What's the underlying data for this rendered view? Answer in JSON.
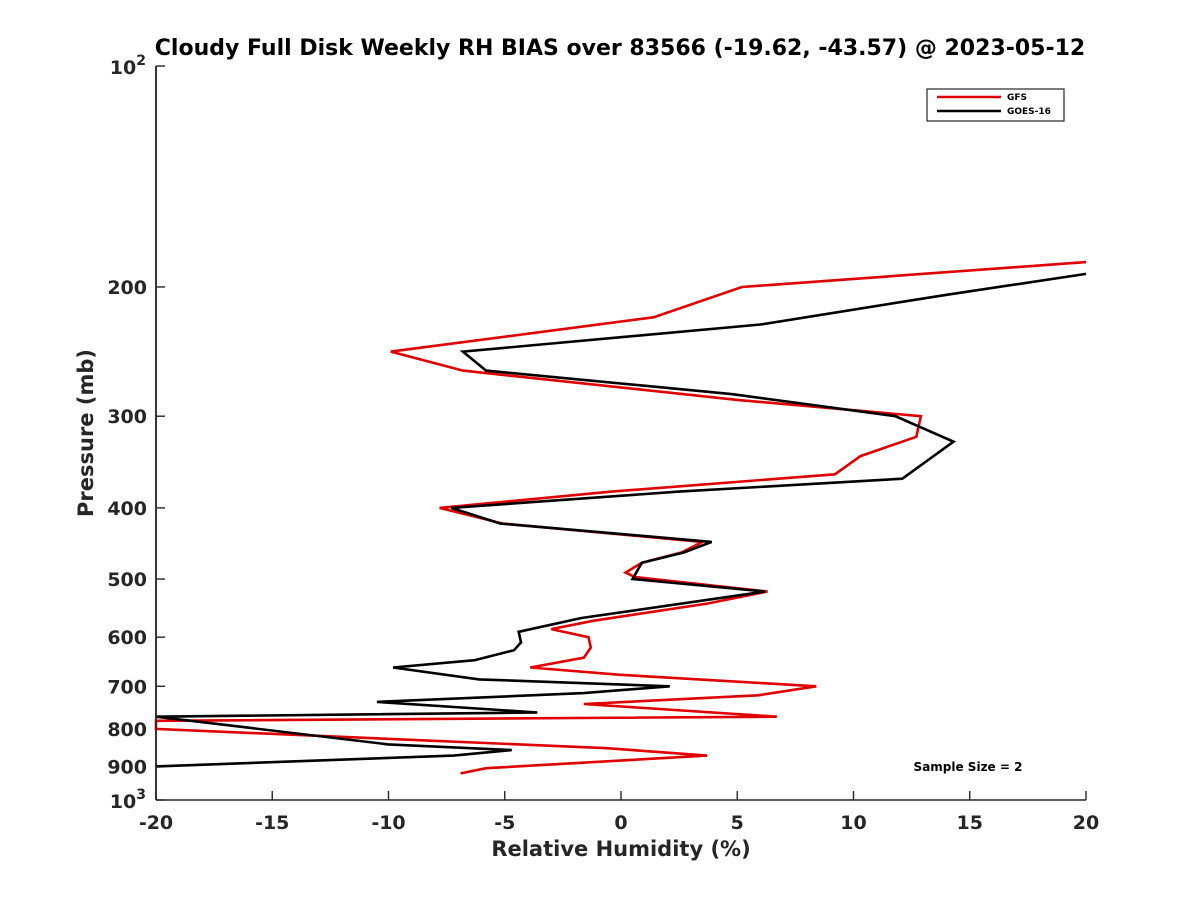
{
  "chart_data": {
    "type": "line",
    "title": "Cloudy Full Disk Weekly RH BIAS over 83566 (-19.62, -43.57) @ 2023-05-12",
    "xlabel": "Relative Humidity (%)",
    "ylabel": "Pressure (mb)",
    "xlim": [
      -20,
      20
    ],
    "ylim": [
      100,
      1000
    ],
    "y_scale": "log",
    "y_reversed": true,
    "x_ticks": [
      "-20",
      "-15",
      "-10",
      "-5",
      "0",
      "5",
      "10",
      "15",
      "20"
    ],
    "y_ticks": [
      {
        "value": 200,
        "label": "200"
      },
      {
        "value": 300,
        "label": "300"
      },
      {
        "value": 400,
        "label": "400"
      },
      {
        "value": 500,
        "label": "500"
      },
      {
        "value": 600,
        "label": "600"
      },
      {
        "value": 700,
        "label": "700"
      },
      {
        "value": 800,
        "label": "800"
      },
      {
        "value": 900,
        "label": "900"
      }
    ],
    "y_ends": {
      "top_base": "10",
      "top_exp": "2",
      "bottom_base": "10",
      "bottom_exp": "3"
    },
    "grid": false,
    "legend_position": "top-right",
    "series": [
      {
        "name": "GFS",
        "color": "#e00000",
        "points": [
          [
            20,
            185
          ],
          [
            5.2,
            200
          ],
          [
            1.4,
            220
          ],
          [
            -9.9,
            245
          ],
          [
            -6.8,
            260
          ],
          [
            5,
            285
          ],
          [
            12.9,
            300
          ],
          [
            12.7,
            320
          ],
          [
            10.3,
            340
          ],
          [
            9.2,
            360
          ],
          [
            -0.4,
            380
          ],
          [
            -7.8,
            400
          ],
          [
            -5.1,
            420
          ],
          [
            3.5,
            445
          ],
          [
            2.6,
            460
          ],
          [
            0.9,
            475
          ],
          [
            0.2,
            490
          ],
          [
            0.6,
            497
          ],
          [
            6.3,
            520
          ],
          [
            3.7,
            540
          ],
          [
            -1.2,
            570
          ],
          [
            -3,
            585
          ],
          [
            -1.4,
            600
          ],
          [
            -1.3,
            620
          ],
          [
            -1.6,
            640
          ],
          [
            -3.9,
            660
          ],
          [
            -0.1,
            675
          ],
          [
            8.4,
            700
          ],
          [
            5.9,
            720
          ],
          [
            -1.6,
            740
          ],
          [
            6.7,
            770
          ],
          [
            -20,
            780
          ],
          [
            -20,
            800
          ],
          [
            -0.6,
            850
          ],
          [
            3.7,
            870
          ],
          [
            -5.8,
            905
          ],
          [
            -6.9,
            920
          ]
        ]
      },
      {
        "name": "GOES-16",
        "color": "#000000",
        "points": [
          [
            20,
            192
          ],
          [
            14,
            205
          ],
          [
            6,
            225
          ],
          [
            -6.8,
            245
          ],
          [
            -5.8,
            260
          ],
          [
            4.8,
            280
          ],
          [
            11.8,
            300
          ],
          [
            14.3,
            325
          ],
          [
            12.1,
            365
          ],
          [
            2.5,
            380
          ],
          [
            -7.3,
            400
          ],
          [
            -5.2,
            420
          ],
          [
            3.9,
            445
          ],
          [
            2.7,
            460
          ],
          [
            0.9,
            475
          ],
          [
            0.5,
            500
          ],
          [
            6.2,
            520
          ],
          [
            -1.7,
            565
          ],
          [
            -4.4,
            590
          ],
          [
            -4.3,
            610
          ],
          [
            -4.6,
            625
          ],
          [
            -6.3,
            645
          ],
          [
            -9.8,
            660
          ],
          [
            -6.1,
            685
          ],
          [
            2.1,
            700
          ],
          [
            -1.6,
            715
          ],
          [
            -10.5,
            735
          ],
          [
            -3.6,
            760
          ],
          [
            -20,
            770
          ],
          [
            -10,
            840
          ],
          [
            -4.7,
            855
          ],
          [
            -7.2,
            870
          ],
          [
            -20,
            900
          ]
        ]
      }
    ],
    "annotation": "Sample Size = 2"
  }
}
